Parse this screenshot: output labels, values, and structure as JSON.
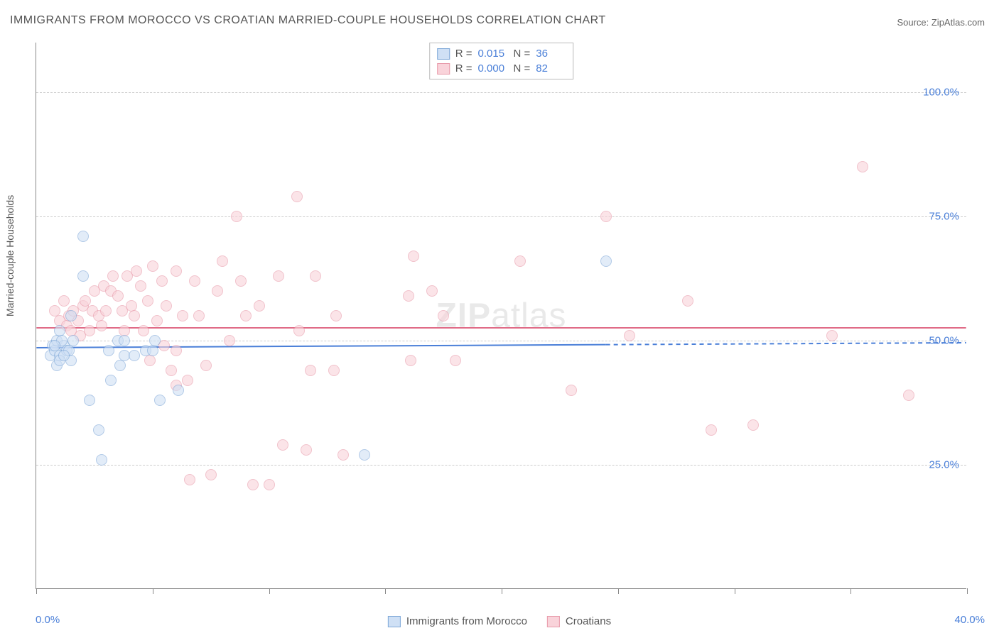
{
  "title": "IMMIGRANTS FROM MOROCCO VS CROATIAN MARRIED-COUPLE HOUSEHOLDS CORRELATION CHART",
  "source": "Source: ZipAtlas.com",
  "watermark_bold": "ZIP",
  "watermark_light": "atlas",
  "y_axis_label": "Married-couple Households",
  "chart": {
    "type": "scatter",
    "xlim": [
      0,
      40
    ],
    "ylim": [
      0,
      110
    ],
    "xtick_positions": [
      0,
      5,
      10,
      15,
      20,
      25,
      30,
      35,
      40
    ],
    "ytick_positions": [
      25,
      50,
      75,
      100
    ],
    "ytick_labels": [
      "25.0%",
      "50.0%",
      "75.0%",
      "100.0%"
    ],
    "xtick_labels_shown": {
      "0": "0.0%",
      "40": "40.0%"
    },
    "grid_color": "#cccccc",
    "axis_color": "#888888",
    "background_color": "#ffffff",
    "label_color": "#4a7fd8",
    "title_color": "#555555",
    "marker_radius": 8,
    "marker_border_width": 1.5
  },
  "series": {
    "morocco": {
      "label": "Immigrants from Morocco",
      "fill": "#cfe0f5",
      "stroke": "#7fa8d8",
      "fill_opacity": 0.6,
      "trend": {
        "y_start": 48.5,
        "y_end": 49.5,
        "x_solid_end": 24.5,
        "color": "#4a7fd8",
        "width": 2
      },
      "stats": {
        "R": "0.015",
        "N": "36"
      },
      "points": [
        [
          0.6,
          47
        ],
        [
          0.7,
          49
        ],
        [
          0.8,
          48
        ],
        [
          0.9,
          50
        ],
        [
          1.0,
          47
        ],
        [
          1.2,
          49
        ],
        [
          1.0,
          52
        ],
        [
          1.3,
          48
        ],
        [
          1.5,
          46
        ],
        [
          1.1,
          50
        ],
        [
          0.8,
          49
        ],
        [
          1.4,
          48
        ],
        [
          0.9,
          45
        ],
        [
          1.0,
          46
        ],
        [
          1.6,
          50
        ],
        [
          1.2,
          47
        ],
        [
          1.5,
          55
        ],
        [
          2.0,
          71
        ],
        [
          2.0,
          63
        ],
        [
          2.3,
          38
        ],
        [
          2.7,
          32
        ],
        [
          2.8,
          26
        ],
        [
          3.2,
          42
        ],
        [
          3.5,
          50
        ],
        [
          3.8,
          47
        ],
        [
          3.8,
          50
        ],
        [
          4.2,
          47
        ],
        [
          4.7,
          48
        ],
        [
          5.0,
          48
        ],
        [
          5.3,
          38
        ],
        [
          5.1,
          50
        ],
        [
          6.1,
          40
        ],
        [
          3.1,
          48
        ],
        [
          14.1,
          27
        ],
        [
          24.5,
          66
        ],
        [
          3.6,
          45
        ]
      ]
    },
    "croatians": {
      "label": "Croatians",
      "fill": "#f9d3da",
      "stroke": "#e89aaa",
      "fill_opacity": 0.6,
      "trend": {
        "y_start": 52.5,
        "y_end": 52.5,
        "color": "#e06b87",
        "width": 2
      },
      "stats": {
        "R": "0.000",
        "N": "82"
      },
      "points": [
        [
          0.8,
          56
        ],
        [
          1.0,
          54
        ],
        [
          1.2,
          58
        ],
        [
          1.3,
          53
        ],
        [
          1.5,
          52
        ],
        [
          1.4,
          55
        ],
        [
          1.6,
          56
        ],
        [
          1.8,
          54
        ],
        [
          1.9,
          51
        ],
        [
          2.0,
          57
        ],
        [
          2.1,
          58
        ],
        [
          2.3,
          52
        ],
        [
          2.4,
          56
        ],
        [
          2.5,
          60
        ],
        [
          2.7,
          55
        ],
        [
          2.8,
          53
        ],
        [
          2.9,
          61
        ],
        [
          3.0,
          56
        ],
        [
          3.2,
          60
        ],
        [
          3.3,
          63
        ],
        [
          3.5,
          59
        ],
        [
          3.7,
          56
        ],
        [
          3.8,
          52
        ],
        [
          3.9,
          63
        ],
        [
          4.1,
          57
        ],
        [
          4.3,
          64
        ],
        [
          4.2,
          55
        ],
        [
          4.5,
          61
        ],
        [
          4.6,
          52
        ],
        [
          4.8,
          58
        ],
        [
          5.0,
          65
        ],
        [
          5.2,
          54
        ],
        [
          5.4,
          62
        ],
        [
          5.6,
          57
        ],
        [
          5.8,
          44
        ],
        [
          6.0,
          48
        ],
        [
          6.0,
          64
        ],
        [
          6.0,
          41
        ],
        [
          6.3,
          55
        ],
        [
          6.5,
          42
        ],
        [
          6.8,
          62
        ],
        [
          7.0,
          55
        ],
        [
          7.3,
          45
        ],
        [
          7.5,
          23
        ],
        [
          7.8,
          60
        ],
        [
          8.0,
          66
        ],
        [
          8.3,
          50
        ],
        [
          8.6,
          75
        ],
        [
          8.8,
          62
        ],
        [
          9.0,
          55
        ],
        [
          9.3,
          21
        ],
        [
          9.6,
          57
        ],
        [
          10.0,
          21
        ],
        [
          10.4,
          63
        ],
        [
          10.6,
          29
        ],
        [
          11.2,
          79
        ],
        [
          11.3,
          52
        ],
        [
          11.8,
          44
        ],
        [
          12.0,
          63
        ],
        [
          11.6,
          28
        ],
        [
          12.8,
          44
        ],
        [
          12.9,
          55
        ],
        [
          13.2,
          27
        ],
        [
          16.0,
          59
        ],
        [
          16.2,
          67
        ],
        [
          16.1,
          46
        ],
        [
          17.0,
          60
        ],
        [
          17.5,
          55
        ],
        [
          18.0,
          46
        ],
        [
          20.8,
          66
        ],
        [
          23.0,
          40
        ],
        [
          24.5,
          75
        ],
        [
          25.5,
          51
        ],
        [
          28.0,
          58
        ],
        [
          29.0,
          32
        ],
        [
          30.8,
          33
        ],
        [
          34.2,
          51
        ],
        [
          35.5,
          85
        ],
        [
          37.5,
          39
        ],
        [
          4.9,
          46
        ],
        [
          5.5,
          49
        ],
        [
          6.6,
          22
        ]
      ]
    }
  },
  "stats_box": {
    "rows": [
      {
        "swatch_fill": "#cfe0f5",
        "swatch_stroke": "#7fa8d8",
        "r_label": "R =",
        "r_val": "0.015",
        "n_label": "N =",
        "n_val": "36"
      },
      {
        "swatch_fill": "#f9d3da",
        "swatch_stroke": "#e89aaa",
        "r_label": "R =",
        "r_val": "0.000",
        "n_label": "N =",
        "n_val": "82"
      }
    ]
  },
  "bottom_legend": [
    {
      "swatch_fill": "#cfe0f5",
      "swatch_stroke": "#7fa8d8",
      "label": "Immigrants from Morocco"
    },
    {
      "swatch_fill": "#f9d3da",
      "swatch_stroke": "#e89aaa",
      "label": "Croatians"
    }
  ]
}
